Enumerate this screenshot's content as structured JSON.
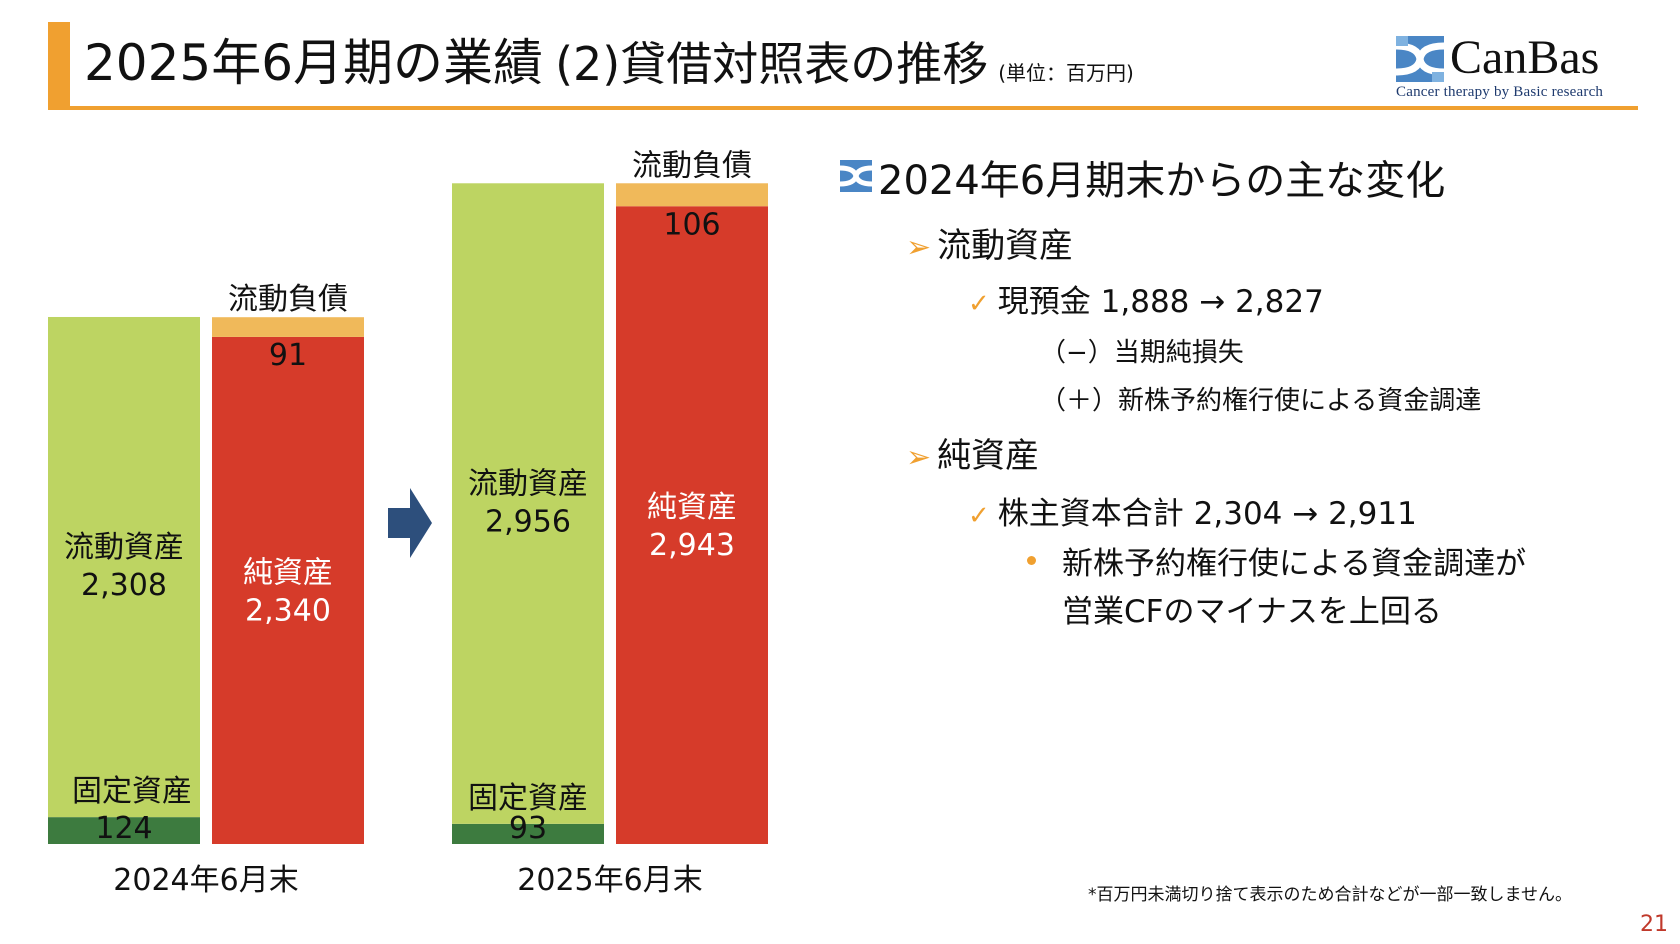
{
  "header": {
    "title": "2025年6月期の業績",
    "subtitle": "(2)貸借対照表の推移",
    "unit": "(単位：百万円)"
  },
  "logo": {
    "name": "CanBas",
    "tagline": "Cancer therapy by Basic research"
  },
  "chart_data": {
    "type": "stacked-bar",
    "unit": "百万円",
    "groups": [
      {
        "period": "2024年6月末",
        "assets": [
          {
            "name": "固定資産",
            "value": 124
          },
          {
            "name": "流動資産",
            "value": 2308
          }
        ],
        "liabilities_equity": [
          {
            "name": "純資産",
            "value": 2340
          },
          {
            "name": "流動負債",
            "value": 91
          }
        ]
      },
      {
        "period": "2025年6月末",
        "assets": [
          {
            "name": "固定資産",
            "value": 93
          },
          {
            "name": "流動資産",
            "value": 2956
          }
        ],
        "liabilities_equity": [
          {
            "name": "純資産",
            "value": 2943
          },
          {
            "name": "流動負債",
            "value": 106
          }
        ]
      }
    ],
    "colors": {
      "流動資産": "#bdd462",
      "固定資産": "#3d7b3f",
      "純資産": "#d63b2a",
      "流動負債": "#f0b95a",
      "arrow": "#2d4f7c"
    },
    "labels": {
      "2024年6月末": {
        "流動資産": "2,308",
        "固定資産": "124",
        "純資産": "2,340",
        "流動負債": "91"
      },
      "2025年6月末": {
        "流動資産": "2,956",
        "固定資産": "93",
        "純資産": "2,943",
        "流動負債": "106"
      }
    }
  },
  "changes": {
    "heading": "2024年6月期末からの主な変化",
    "current_assets": {
      "title": "流動資産",
      "item": "現預金 1,888 → 2,827",
      "minus": "（−）当期純損失",
      "plus": "（＋）新株予約権行使による資金調達"
    },
    "net_assets": {
      "title": "純資産",
      "item": "株主資本合計 2,304 → 2,911",
      "bullet": [
        "新株予約権行使による資金調達が",
        "営業CFのマイナスを上回る"
      ]
    }
  },
  "footnote": "*百万円未満切り捨て表示のため合計などが一部一致しません。",
  "page_number": "21"
}
